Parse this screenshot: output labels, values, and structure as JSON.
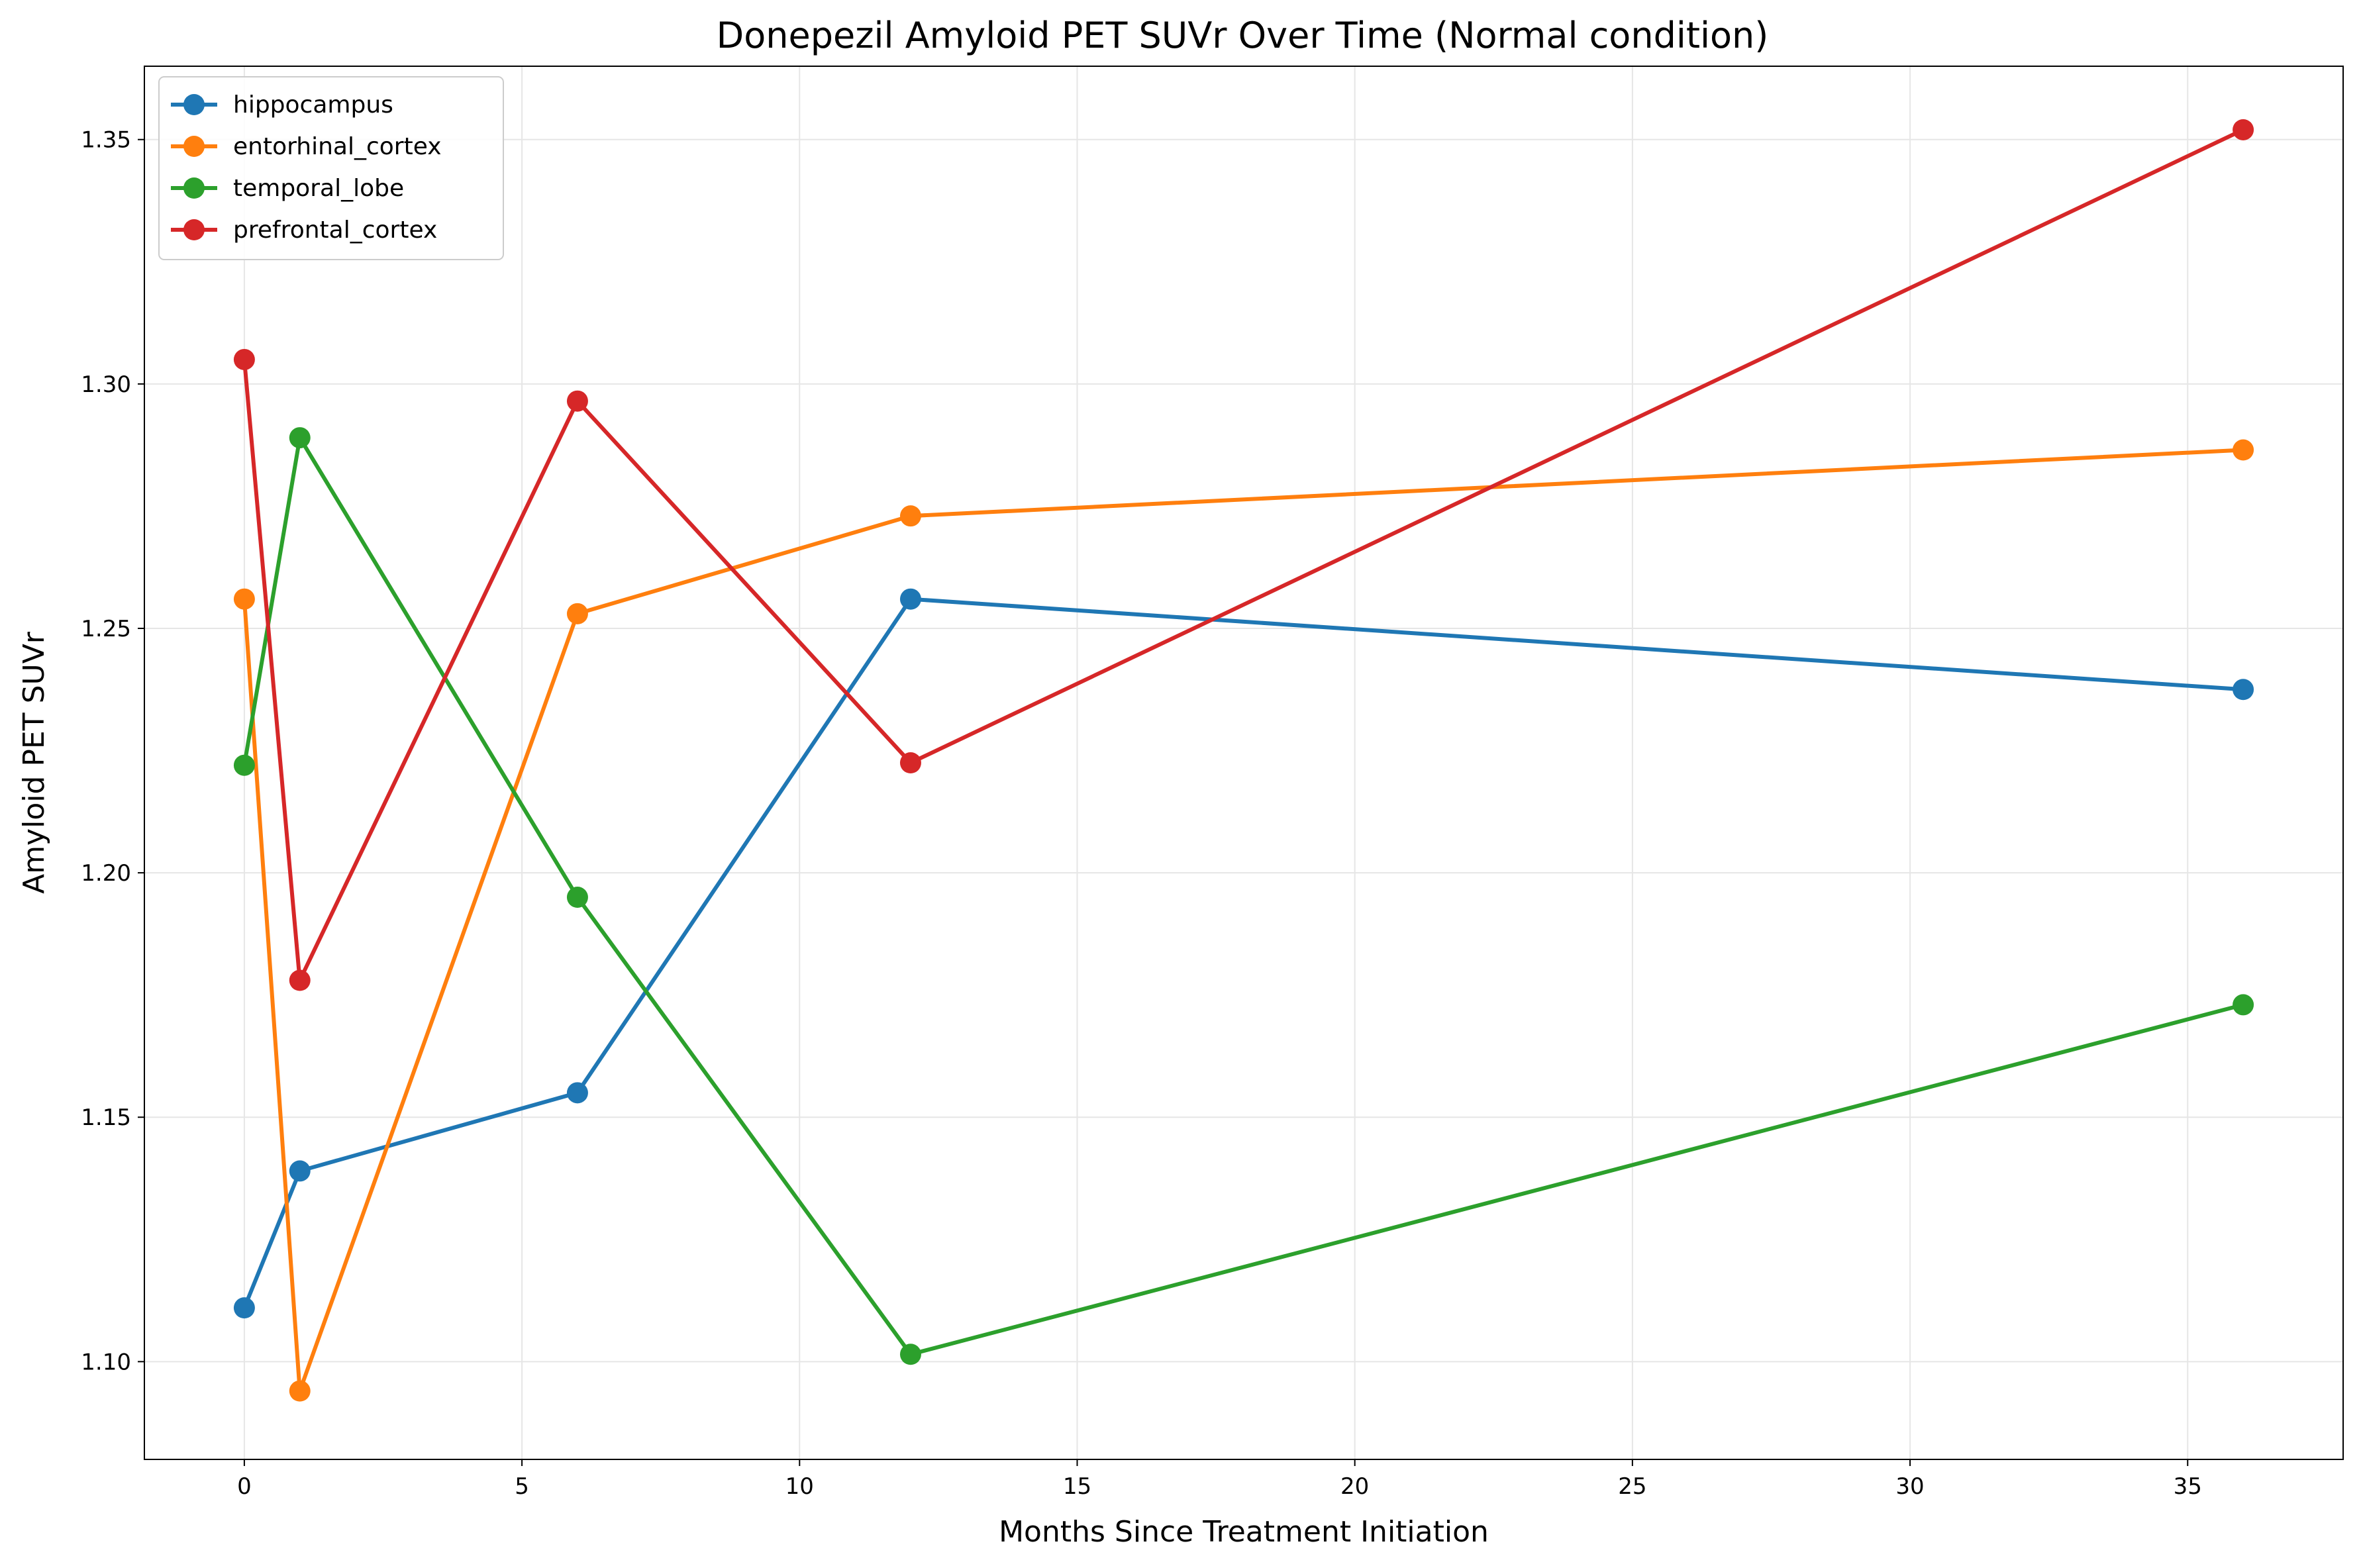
{
  "chart_data": {
    "type": "line",
    "title": "Donepezil Amyloid PET SUVr Over Time (Normal condition)",
    "xlabel": "Months Since Treatment Initiation",
    "ylabel": "Amyloid PET SUVr",
    "x": [
      0,
      1,
      6,
      12,
      36
    ],
    "xlim": [
      -1.8,
      37.8
    ],
    "ylim": [
      1.08,
      1.365
    ],
    "xticks": [
      0,
      5,
      10,
      15,
      20,
      25,
      30,
      35
    ],
    "xtick_labels": [
      "0",
      "5",
      "10",
      "15",
      "20",
      "25",
      "30",
      "35"
    ],
    "yticks": [
      1.1,
      1.15,
      1.2,
      1.25,
      1.3,
      1.35
    ],
    "ytick_labels": [
      "1.10",
      "1.15",
      "1.20",
      "1.25",
      "1.30",
      "1.35"
    ],
    "grid": true,
    "legend_position": "upper-left",
    "series": [
      {
        "name": "hippocampus",
        "color": "#1f77b4",
        "values": [
          1.111,
          1.139,
          1.155,
          1.256,
          1.2375
        ]
      },
      {
        "name": "entorhinal_cortex",
        "color": "#ff7f0e",
        "values": [
          1.256,
          1.094,
          1.253,
          1.273,
          1.2865
        ]
      },
      {
        "name": "temporal_lobe",
        "color": "#2ca02c",
        "values": [
          1.222,
          1.289,
          1.195,
          1.1015,
          1.173
        ]
      },
      {
        "name": "prefrontal_cortex",
        "color": "#d62728",
        "values": [
          1.305,
          1.178,
          1.2965,
          1.2225,
          1.352
        ]
      }
    ]
  }
}
